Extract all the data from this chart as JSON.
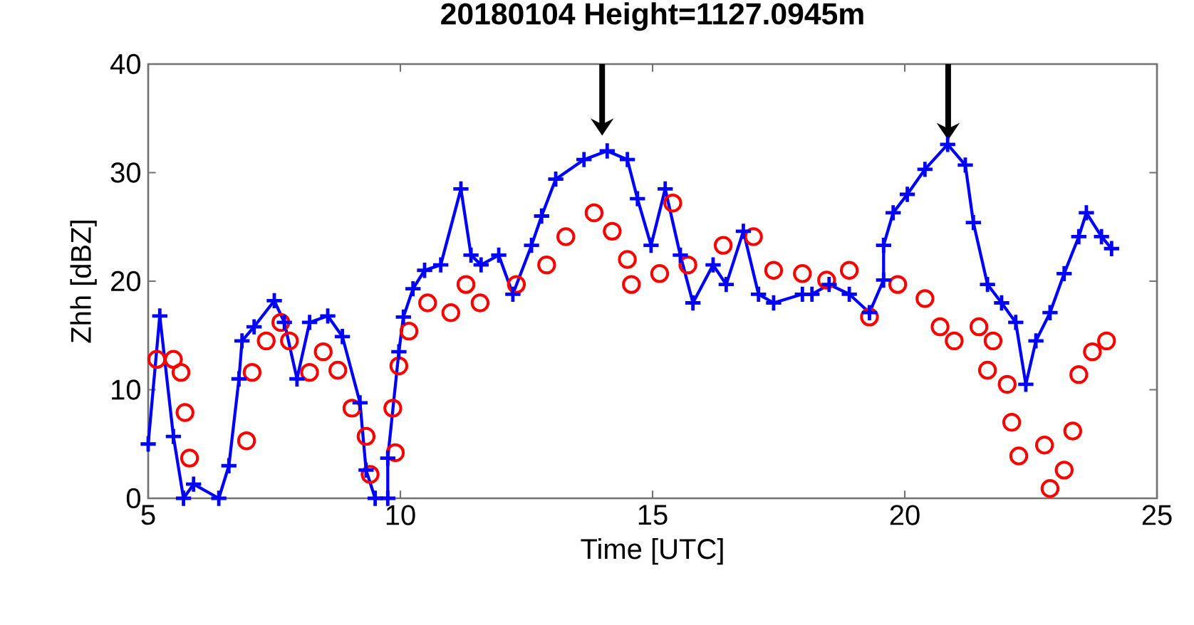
{
  "chart_data": {
    "type": "line",
    "title": "20180104 Height=1127.0945m",
    "xlabel": "Time [UTC]",
    "ylabel": "Zhh [dBZ]",
    "xlim": [
      5,
      25
    ],
    "xticks": [
      5,
      10,
      15,
      20,
      25
    ],
    "ylim": [
      0,
      40
    ],
    "yticks": [
      0,
      10,
      20,
      30,
      40
    ],
    "grid": false,
    "series": [
      {
        "type": "scatter",
        "marker": "circle",
        "color": "#ff0000",
        "x": [
          5.17,
          5.5,
          5.65,
          5.73,
          5.82,
          6.95,
          7.06,
          7.34,
          7.63,
          7.8,
          8.2,
          8.47,
          8.76,
          9.04,
          9.32,
          9.4,
          9.85,
          9.9,
          9.97,
          10.17,
          10.54,
          11.0,
          11.3,
          11.58,
          12.3,
          12.9,
          13.28,
          13.84,
          14.2,
          14.5,
          14.58,
          15.14,
          15.4,
          15.7,
          16.4,
          17.0,
          17.4,
          17.97,
          18.45,
          18.9,
          19.3,
          19.86,
          20.4,
          20.7,
          20.98,
          21.47,
          21.64,
          21.75,
          22.03,
          22.12,
          22.26,
          22.77,
          22.88,
          23.16,
          23.33,
          23.45,
          23.72,
          24.0
        ],
        "values": [
          12.8,
          12.8,
          11.6,
          7.9,
          3.7,
          5.3,
          11.6,
          14.5,
          16.2,
          14.5,
          11.6,
          13.5,
          11.8,
          8.3,
          5.7,
          2.2,
          8.3,
          4.2,
          12.2,
          15.4,
          18,
          17.1,
          19.7,
          18,
          19.7,
          21.5,
          24.1,
          26.3,
          24.6,
          22,
          19.7,
          20.7,
          27.2,
          21.5,
          23.3,
          24.1,
          21,
          20.7,
          20.1,
          21,
          16.7,
          19.7,
          18.4,
          15.8,
          14.5,
          15.8,
          11.8,
          14.5,
          10.5,
          7,
          3.9,
          4.9,
          0.9,
          2.6,
          6.2,
          11.4,
          13.5,
          14.5
        ]
      },
      {
        "marker": "cross",
        "line_style": "solid",
        "color": "#0000ff",
        "x": [
          5.0,
          5.23,
          5.5,
          5.7,
          5.9,
          6.4,
          6.6,
          6.8,
          6.86,
          7.1,
          7.5,
          7.7,
          7.95,
          8.2,
          8.56,
          8.85,
          9.2,
          9.32,
          9.5,
          9.75,
          9.75,
          9.97,
          10.06,
          10.25,
          10.48,
          10.8,
          11.2,
          11.4,
          11.6,
          11.95,
          12.23,
          12.6,
          12.8,
          13.08,
          13.64,
          14.1,
          14.5,
          14.7,
          14.97,
          15.25,
          15.55,
          15.8,
          16.2,
          16.46,
          16.8,
          17.1,
          17.4,
          17.97,
          18.16,
          18.5,
          18.9,
          19.3,
          19.58,
          19.58,
          19.77,
          20.05,
          20.4,
          20.85,
          21.2,
          21.36,
          21.64,
          21.92,
          22.2,
          22.4,
          22.6,
          22.88,
          23.16,
          23.45,
          23.6,
          23.9,
          24.1
        ],
        "values": [
          5,
          16.8,
          5.7,
          0,
          1.3,
          0,
          3,
          11,
          14.5,
          15.8,
          18.2,
          16.2,
          11,
          16.2,
          16.8,
          14.9,
          8.8,
          2.6,
          0,
          0,
          3.7,
          13.5,
          16.7,
          19.3,
          21,
          21.5,
          28.5,
          22.4,
          21.5,
          22.4,
          18.8,
          23.3,
          26,
          29.4,
          31.2,
          32,
          31.2,
          27.6,
          23.3,
          28.5,
          22.4,
          18,
          21.5,
          19.7,
          24.6,
          18.8,
          18,
          18.8,
          18.8,
          19.7,
          18.8,
          17.1,
          20.1,
          23.3,
          26.3,
          28,
          30.3,
          32.6,
          30.7,
          25.4,
          19.7,
          18,
          16.2,
          10.5,
          14.5,
          17.1,
          20.7,
          24.1,
          26.3,
          24.1,
          23
        ]
      }
    ]
  }
}
